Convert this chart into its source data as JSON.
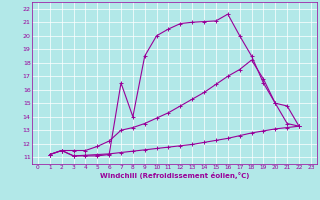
{
  "title": "",
  "xlabel": "Windchill (Refroidissement éolien,°C)",
  "background_color": "#b2e8e8",
  "grid_color": "#ffffff",
  "line_color": "#990099",
  "xlim": [
    -0.5,
    23.5
  ],
  "ylim": [
    10.5,
    22.5
  ],
  "xticks": [
    0,
    1,
    2,
    3,
    4,
    5,
    6,
    7,
    8,
    9,
    10,
    11,
    12,
    13,
    14,
    15,
    16,
    17,
    18,
    19,
    20,
    21,
    22,
    23
  ],
  "yticks": [
    11,
    12,
    13,
    14,
    15,
    16,
    17,
    18,
    19,
    20,
    21,
    22
  ],
  "line1_x": [
    1,
    2,
    3,
    4,
    5,
    6,
    7,
    8,
    9,
    10,
    11,
    12,
    13,
    14,
    15,
    16,
    17,
    18,
    19,
    20,
    21,
    22
  ],
  "line1_y": [
    11.2,
    11.5,
    11.1,
    11.1,
    11.1,
    11.2,
    16.5,
    14.0,
    18.5,
    20.0,
    20.5,
    20.9,
    21.0,
    21.05,
    21.1,
    21.6,
    20.0,
    18.5,
    16.5,
    15.0,
    14.8,
    13.3
  ],
  "line2_x": [
    1,
    2,
    3,
    4,
    5,
    6,
    7,
    8,
    9,
    10,
    11,
    12,
    13,
    14,
    15,
    16,
    17,
    18,
    19,
    20,
    21,
    22
  ],
  "line2_y": [
    11.2,
    11.5,
    11.5,
    11.5,
    11.8,
    12.2,
    13.0,
    13.2,
    13.5,
    13.9,
    14.3,
    14.8,
    15.3,
    15.8,
    16.4,
    17.0,
    17.5,
    18.2,
    16.8,
    15.0,
    13.5,
    13.3
  ],
  "line3_x": [
    1,
    2,
    3,
    4,
    5,
    6,
    7,
    8,
    9,
    10,
    11,
    12,
    13,
    14,
    15,
    16,
    17,
    18,
    19,
    20,
    21,
    22
  ],
  "line3_y": [
    11.2,
    11.5,
    11.1,
    11.15,
    11.2,
    11.25,
    11.35,
    11.45,
    11.55,
    11.65,
    11.75,
    11.85,
    11.95,
    12.1,
    12.25,
    12.4,
    12.6,
    12.8,
    12.95,
    13.1,
    13.2,
    13.3
  ]
}
